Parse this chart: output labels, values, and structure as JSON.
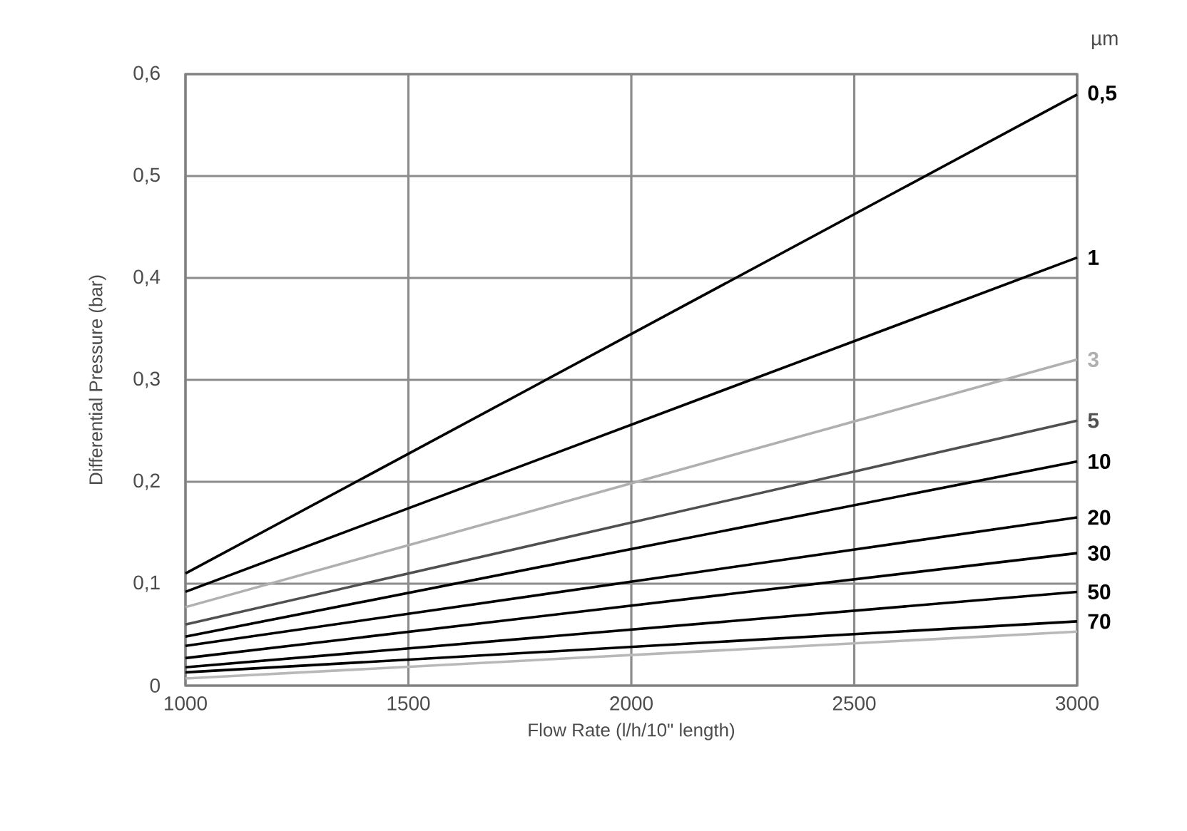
{
  "chart_data": {
    "type": "line",
    "xlabel": "Flow Rate (l/h/10\" length)",
    "ylabel": "Differential Pressure (bar)",
    "legend_title": "µm",
    "x": [
      1000,
      3000
    ],
    "xlim": [
      1000,
      3000
    ],
    "xticks": [
      1000,
      1500,
      2000,
      2500,
      3000
    ],
    "ylim": [
      0,
      0.6
    ],
    "yticks": [
      {
        "value": 0,
        "label": "0"
      },
      {
        "value": 0.1,
        "label": "0,1"
      },
      {
        "value": 0.2,
        "label": "0,2"
      },
      {
        "value": 0.3,
        "label": "0,3"
      },
      {
        "value": 0.4,
        "label": "0,4"
      },
      {
        "value": 0.5,
        "label": "0,5"
      },
      {
        "value": 0.6,
        "label": "0,6"
      }
    ],
    "grid": true,
    "legend": "right",
    "marker": "none",
    "line_style": "solid",
    "series": [
      {
        "name": "0,5",
        "color": "#000000",
        "values": [
          0.11,
          0.58
        ]
      },
      {
        "name": "1",
        "color": "#000000",
        "values": [
          0.092,
          0.42
        ]
      },
      {
        "name": "3",
        "color": "#b0b0b0",
        "values": [
          0.077,
          0.32
        ]
      },
      {
        "name": "5",
        "color": "#505050",
        "values": [
          0.06,
          0.26
        ]
      },
      {
        "name": "10",
        "color": "#000000",
        "values": [
          0.048,
          0.22
        ]
      },
      {
        "name": "20",
        "color": "#000000",
        "values": [
          0.039,
          0.165
        ]
      },
      {
        "name": "30",
        "color": "#000000",
        "values": [
          0.027,
          0.13
        ]
      },
      {
        "name": "50",
        "color": "#000000",
        "values": [
          0.018,
          0.092
        ]
      },
      {
        "name": "70",
        "color": "#000000",
        "values": [
          0.013,
          0.063
        ]
      },
      {
        "color": "#b8b8b8",
        "values": [
          0.007,
          0.053
        ]
      }
    ]
  }
}
